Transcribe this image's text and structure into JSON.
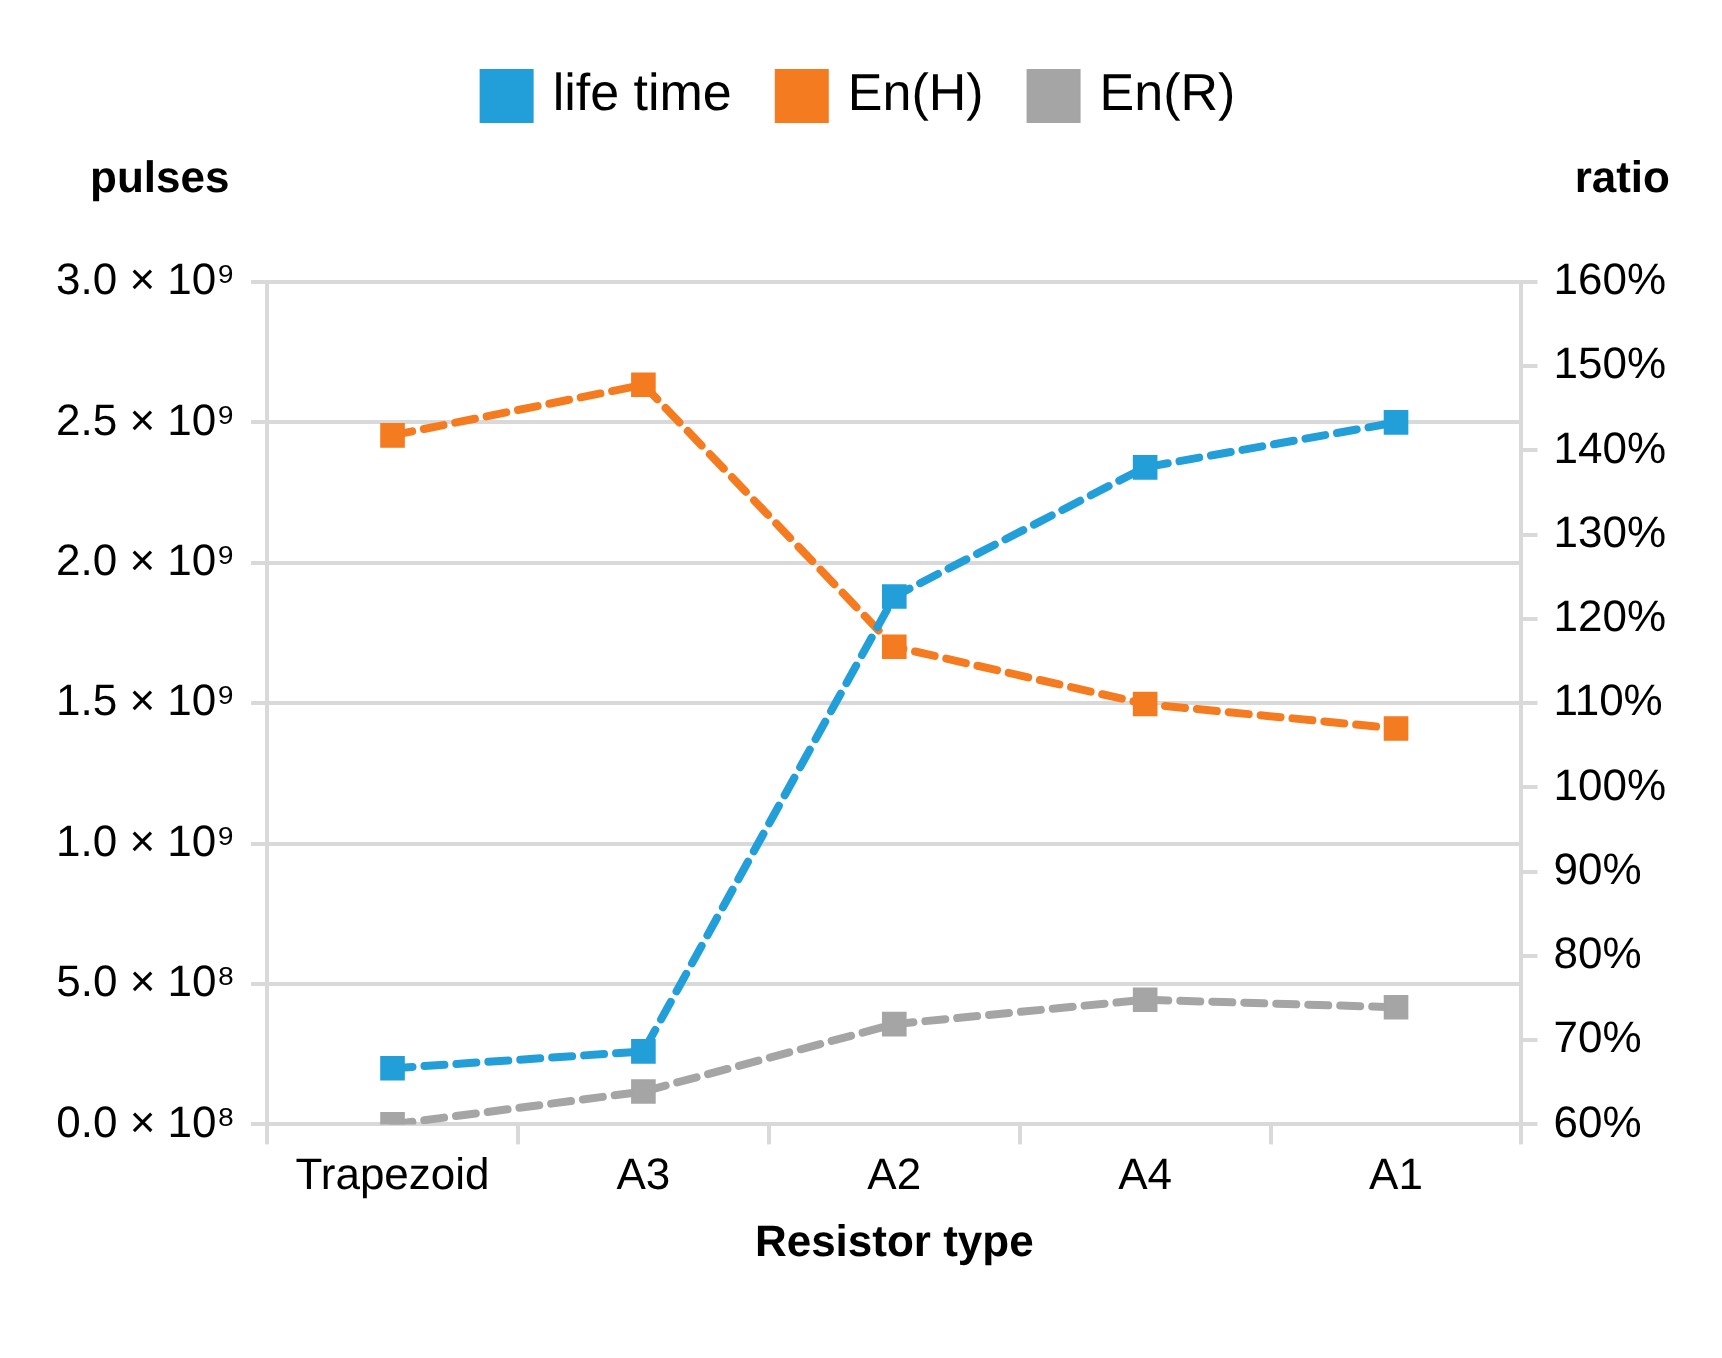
{
  "chart_data": {
    "type": "line",
    "xlabel": "Resistor type",
    "ylabel": "pulses",
    "y2label": "ratio",
    "categories": [
      "Trapezoid",
      "A3",
      "A2",
      "A4",
      "A1"
    ],
    "series": [
      {
        "name": "life time",
        "color": "#229fd9",
        "values": [
          200000000,
          260000000,
          1880000000,
          2340000000,
          2500000000
        ]
      },
      {
        "name": "En(H)",
        "color": "#f47b20",
        "axis": "y2",
        "values": [
          141.8,
          147.8,
          116.7,
          109.9,
          107
        ]
      },
      {
        "name": "En(R)",
        "color": "#a5a5a5",
        "axis": "y2",
        "values": [
          60,
          63.9,
          71.9,
          74.8,
          73.9
        ]
      }
    ],
    "ylim": [
      0,
      3000000000
    ],
    "yticks": [
      {
        "value": 0,
        "label": "0.0 × 10⁸"
      },
      {
        "value": 500000000,
        "label": "5.0 × 10⁸"
      },
      {
        "value": 1000000000,
        "label": "1.0 × 10⁹"
      },
      {
        "value": 1500000000,
        "label": "1.5 × 10⁹"
      },
      {
        "value": 2000000000,
        "label": "2.0 × 10⁹"
      },
      {
        "value": 2500000000,
        "label": "2.5 × 10⁹"
      },
      {
        "value": 3000000000,
        "label": "3.0 × 10⁹"
      }
    ],
    "y2lim": [
      60,
      160
    ],
    "y2ticks": [
      {
        "value": 60,
        "label": "60%"
      },
      {
        "value": 70,
        "label": "70%"
      },
      {
        "value": 80,
        "label": "80%"
      },
      {
        "value": 90,
        "label": "90%"
      },
      {
        "value": 100,
        "label": "100%"
      },
      {
        "value": 110,
        "label": "110%"
      },
      {
        "value": 120,
        "label": "120%"
      },
      {
        "value": 130,
        "label": "130%"
      },
      {
        "value": 140,
        "label": "140%"
      },
      {
        "value": 150,
        "label": "150%"
      },
      {
        "value": 160,
        "label": "160%"
      }
    ],
    "grid": "y",
    "legend": "top",
    "marker": "square",
    "line_style": "dashed"
  }
}
